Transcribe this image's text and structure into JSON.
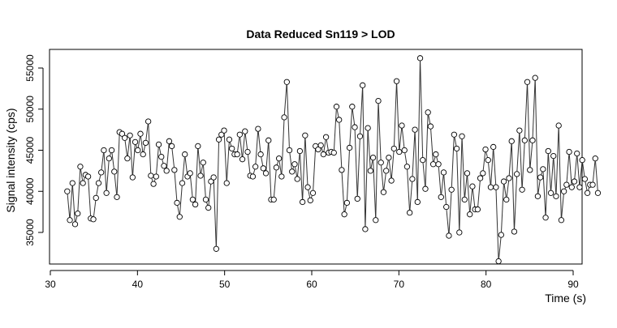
{
  "chart_data": {
    "type": "line",
    "title": "Data Reduced Sn119 > LOD",
    "xlabel": "Time (s)",
    "ylabel": "Signal intensity (cps)",
    "xlim": [
      31,
      92
    ],
    "ylim": [
      31000,
      57500
    ],
    "x_ticks": [
      30,
      40,
      50,
      60,
      70,
      80,
      90
    ],
    "y_ticks": [
      35000,
      40000,
      45000,
      50000,
      55000
    ],
    "grid": false,
    "legend": "none",
    "marker": "open-circle",
    "line_color": "#333333",
    "series": [
      {
        "points": [
          [
            31.94,
            40000
          ],
          [
            32.24,
            36500
          ],
          [
            32.54,
            41000
          ],
          [
            32.84,
            36000
          ],
          [
            33.14,
            37300
          ],
          [
            33.44,
            43000
          ],
          [
            33.74,
            41000
          ],
          [
            34.04,
            42000
          ],
          [
            34.34,
            41800
          ],
          [
            34.64,
            36700
          ],
          [
            34.94,
            36600
          ],
          [
            35.24,
            39200
          ],
          [
            35.54,
            41000
          ],
          [
            35.84,
            42300
          ],
          [
            36.14,
            45000
          ],
          [
            36.44,
            39800
          ],
          [
            36.74,
            44000
          ],
          [
            37.04,
            45000
          ],
          [
            37.34,
            42400
          ],
          [
            37.64,
            39300
          ],
          [
            37.94,
            47200
          ],
          [
            38.24,
            47000
          ],
          [
            38.54,
            46500
          ],
          [
            38.84,
            44000
          ],
          [
            39.14,
            46800
          ],
          [
            39.44,
            41700
          ],
          [
            39.74,
            46000
          ],
          [
            40.04,
            45000
          ],
          [
            40.34,
            47000
          ],
          [
            40.64,
            44500
          ],
          [
            40.94,
            45900
          ],
          [
            41.24,
            48500
          ],
          [
            41.54,
            41900
          ],
          [
            41.84,
            40900
          ],
          [
            42.14,
            41800
          ],
          [
            42.44,
            45700
          ],
          [
            42.74,
            44200
          ],
          [
            43.04,
            43100
          ],
          [
            43.34,
            42500
          ],
          [
            43.64,
            46100
          ],
          [
            43.94,
            45500
          ],
          [
            44.24,
            42600
          ],
          [
            44.54,
            38600
          ],
          [
            44.84,
            36900
          ],
          [
            45.14,
            41000
          ],
          [
            45.44,
            44500
          ],
          [
            45.74,
            41800
          ],
          [
            46.04,
            42200
          ],
          [
            46.34,
            39000
          ],
          [
            46.64,
            38400
          ],
          [
            46.94,
            45500
          ],
          [
            47.24,
            41900
          ],
          [
            47.54,
            43500
          ],
          [
            47.84,
            39000
          ],
          [
            48.14,
            38000
          ],
          [
            48.44,
            41200
          ],
          [
            48.74,
            41700
          ],
          [
            49.04,
            33000
          ],
          [
            49.34,
            46300
          ],
          [
            49.64,
            46900
          ],
          [
            49.94,
            47400
          ],
          [
            50.24,
            41000
          ],
          [
            50.54,
            46300
          ],
          [
            50.84,
            45200
          ],
          [
            51.14,
            44500
          ],
          [
            51.44,
            44500
          ],
          [
            51.74,
            46900
          ],
          [
            52.04,
            43900
          ],
          [
            52.34,
            47300
          ],
          [
            52.64,
            44800
          ],
          [
            52.94,
            41900
          ],
          [
            53.24,
            41800
          ],
          [
            53.54,
            43000
          ],
          [
            53.84,
            47600
          ],
          [
            54.14,
            44500
          ],
          [
            54.44,
            42800
          ],
          [
            54.74,
            42200
          ],
          [
            55.04,
            46200
          ],
          [
            55.34,
            39000
          ],
          [
            55.64,
            39000
          ],
          [
            55.94,
            42900
          ],
          [
            56.24,
            44000
          ],
          [
            56.54,
            41800
          ],
          [
            56.84,
            49000
          ],
          [
            57.14,
            53300
          ],
          [
            57.44,
            45000
          ],
          [
            57.74,
            42400
          ],
          [
            58.04,
            43300
          ],
          [
            58.34,
            41500
          ],
          [
            58.64,
            44900
          ],
          [
            58.94,
            38700
          ],
          [
            59.24,
            46800
          ],
          [
            59.54,
            40500
          ],
          [
            59.84,
            38900
          ],
          [
            60.14,
            39800
          ],
          [
            60.44,
            45500
          ],
          [
            60.74,
            45100
          ],
          [
            61.04,
            45600
          ],
          [
            61.34,
            44500
          ],
          [
            61.64,
            46600
          ],
          [
            61.94,
            44700
          ],
          [
            62.24,
            44800
          ],
          [
            62.54,
            44700
          ],
          [
            62.84,
            50300
          ],
          [
            63.14,
            48700
          ],
          [
            63.44,
            42600
          ],
          [
            63.74,
            37200
          ],
          [
            64.04,
            38600
          ],
          [
            64.34,
            45300
          ],
          [
            64.64,
            50300
          ],
          [
            64.94,
            47800
          ],
          [
            65.24,
            39100
          ],
          [
            65.54,
            46700
          ],
          [
            65.84,
            52900
          ],
          [
            66.14,
            35400
          ],
          [
            66.44,
            47700
          ],
          [
            66.74,
            42500
          ],
          [
            67.04,
            44100
          ],
          [
            67.34,
            36500
          ],
          [
            67.64,
            51000
          ],
          [
            67.94,
            43500
          ],
          [
            68.24,
            39900
          ],
          [
            68.54,
            42500
          ],
          [
            68.84,
            44100
          ],
          [
            69.14,
            41300
          ],
          [
            69.44,
            45200
          ],
          [
            69.74,
            53400
          ],
          [
            70.04,
            44800
          ],
          [
            70.34,
            48000
          ],
          [
            70.64,
            45000
          ],
          [
            70.94,
            43000
          ],
          [
            71.24,
            37400
          ],
          [
            71.54,
            41500
          ],
          [
            71.84,
            47500
          ],
          [
            72.14,
            38700
          ],
          [
            72.44,
            56200
          ],
          [
            72.74,
            43800
          ],
          [
            73.04,
            40300
          ],
          [
            73.34,
            49600
          ],
          [
            73.64,
            47900
          ],
          [
            73.94,
            43300
          ],
          [
            74.24,
            44500
          ],
          [
            74.54,
            43300
          ],
          [
            74.84,
            39300
          ],
          [
            75.14,
            42300
          ],
          [
            75.44,
            38100
          ],
          [
            75.74,
            34600
          ],
          [
            76.04,
            40200
          ],
          [
            76.34,
            46900
          ],
          [
            76.64,
            45200
          ],
          [
            76.94,
            35000
          ],
          [
            77.24,
            46700
          ],
          [
            77.54,
            39000
          ],
          [
            77.84,
            42200
          ],
          [
            78.14,
            37200
          ],
          [
            78.44,
            40600
          ],
          [
            78.74,
            37800
          ],
          [
            79.04,
            37800
          ],
          [
            79.34,
            41600
          ],
          [
            79.64,
            42200
          ],
          [
            79.94,
            45100
          ],
          [
            80.24,
            43800
          ],
          [
            80.54,
            40500
          ],
          [
            80.84,
            45400
          ],
          [
            81.14,
            40500
          ],
          [
            81.44,
            31500
          ],
          [
            81.74,
            34700
          ],
          [
            82.04,
            41200
          ],
          [
            82.34,
            39000
          ],
          [
            82.64,
            41600
          ],
          [
            82.94,
            46100
          ],
          [
            83.24,
            35100
          ],
          [
            83.54,
            42100
          ],
          [
            83.84,
            47400
          ],
          [
            84.14,
            40200
          ],
          [
            84.44,
            46200
          ],
          [
            84.74,
            53300
          ],
          [
            85.04,
            42600
          ],
          [
            85.34,
            46200
          ],
          [
            85.64,
            53800
          ],
          [
            85.94,
            39400
          ],
          [
            86.24,
            41700
          ],
          [
            86.54,
            42700
          ],
          [
            86.84,
            36800
          ],
          [
            87.14,
            44900
          ],
          [
            87.44,
            39800
          ],
          [
            87.74,
            44300
          ],
          [
            88.04,
            39400
          ],
          [
            88.34,
            48000
          ],
          [
            88.64,
            36500
          ],
          [
            88.94,
            40000
          ],
          [
            89.24,
            40800
          ],
          [
            89.54,
            44800
          ],
          [
            89.84,
            40500
          ],
          [
            90.14,
            41200
          ],
          [
            90.44,
            44600
          ],
          [
            90.74,
            40500
          ],
          [
            91.04,
            43800
          ],
          [
            91.34,
            41500
          ],
          [
            91.64,
            39800
          ],
          [
            91.94,
            40800
          ],
          [
            92.24,
            40800
          ],
          [
            92.54,
            44000
          ],
          [
            92.84,
            39800
          ]
        ]
      }
    ]
  }
}
